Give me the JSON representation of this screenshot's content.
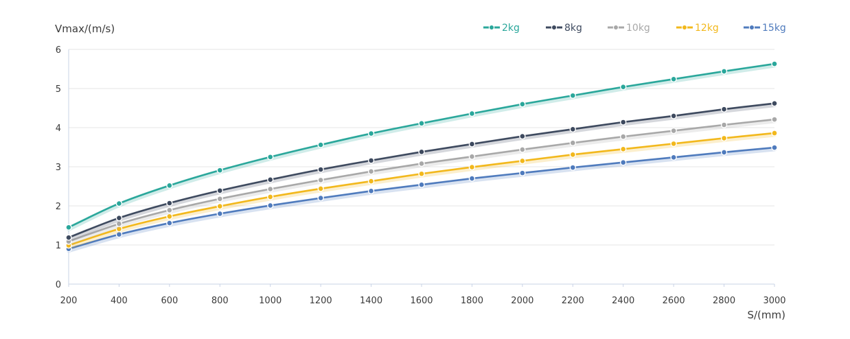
{
  "chart_data": {
    "type": "line",
    "title": "",
    "xlabel": "S/(mm)",
    "ylabel": "Vmax/(m/s)",
    "x": [
      200,
      400,
      600,
      800,
      1000,
      1200,
      1400,
      1600,
      1800,
      2000,
      2200,
      2400,
      2600,
      2800,
      3000
    ],
    "xlim": [
      200,
      3000
    ],
    "ylim": [
      0,
      6
    ],
    "x_ticks": [
      200,
      400,
      600,
      800,
      1000,
      1200,
      1400,
      1600,
      1800,
      2000,
      2200,
      2400,
      2600,
      2800,
      3000
    ],
    "y_ticks": [
      0,
      1,
      2,
      3,
      4,
      5,
      6
    ],
    "grid": "horizontal",
    "legend_position": "top-right",
    "series": [
      {
        "name": "2kg",
        "color": "#2aa79b",
        "values": [
          1.45,
          2.06,
          2.52,
          2.91,
          3.25,
          3.56,
          3.85,
          4.11,
          4.36,
          4.6,
          4.82,
          5.04,
          5.24,
          5.44,
          5.63
        ]
      },
      {
        "name": "8kg",
        "color": "#3e4a5f",
        "values": [
          1.19,
          1.69,
          2.07,
          2.39,
          2.67,
          2.93,
          3.16,
          3.38,
          3.58,
          3.78,
          3.96,
          4.14,
          4.3,
          4.47,
          4.62
        ]
      },
      {
        "name": "10kg",
        "color": "#a8a8a8",
        "values": [
          1.09,
          1.54,
          1.89,
          2.18,
          2.43,
          2.66,
          2.88,
          3.08,
          3.26,
          3.44,
          3.61,
          3.77,
          3.92,
          4.07,
          4.21
        ]
      },
      {
        "name": "12kg",
        "color": "#f2b81c",
        "values": [
          0.99,
          1.41,
          1.73,
          1.99,
          2.23,
          2.44,
          2.63,
          2.82,
          2.99,
          3.15,
          3.31,
          3.45,
          3.59,
          3.73,
          3.86
        ]
      },
      {
        "name": "15kg",
        "color": "#4f7bbd",
        "values": [
          0.9,
          1.27,
          1.56,
          1.8,
          2.01,
          2.2,
          2.38,
          2.54,
          2.7,
          2.84,
          2.98,
          3.11,
          3.24,
          3.37,
          3.49
        ]
      }
    ]
  }
}
